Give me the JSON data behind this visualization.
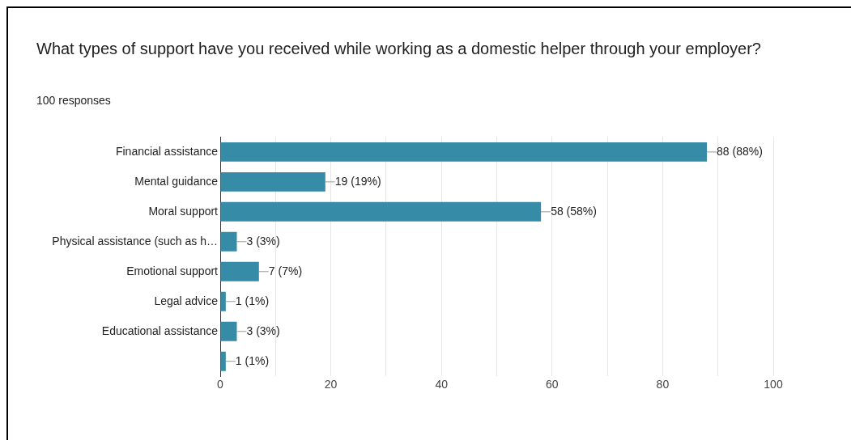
{
  "chart_data": {
    "type": "bar",
    "orientation": "horizontal",
    "title": "What types of support have you received while working as a domestic helper through your employer?",
    "subtitle": "100 responses",
    "categories": [
      "Financial assistance",
      "Mental guidance",
      "Moral support",
      "Physical assistance (such as h…",
      "Emotional support",
      "Legal advice",
      "Educational assistance",
      null
    ],
    "values": [
      88,
      19,
      58,
      3,
      7,
      1,
      3,
      1
    ],
    "value_labels": [
      "88 (88%)",
      "19 (19%)",
      "58 (58%)",
      "3 (3%)",
      "7 (7%)",
      "1 (1%)",
      "3 (3%)",
      "1 (1%)"
    ],
    "color": "#368ba6",
    "xlim": [
      0,
      100
    ],
    "xticks": [
      0,
      {
        "value": 10,
        "label": null
      },
      20,
      {
        "value": 30,
        "label": null
      },
      40,
      {
        "value": 50,
        "label": null
      },
      60,
      {
        "value": 70,
        "label": null
      },
      80,
      {
        "value": 90,
        "label": null
      },
      100
    ],
    "grid": "x"
  }
}
